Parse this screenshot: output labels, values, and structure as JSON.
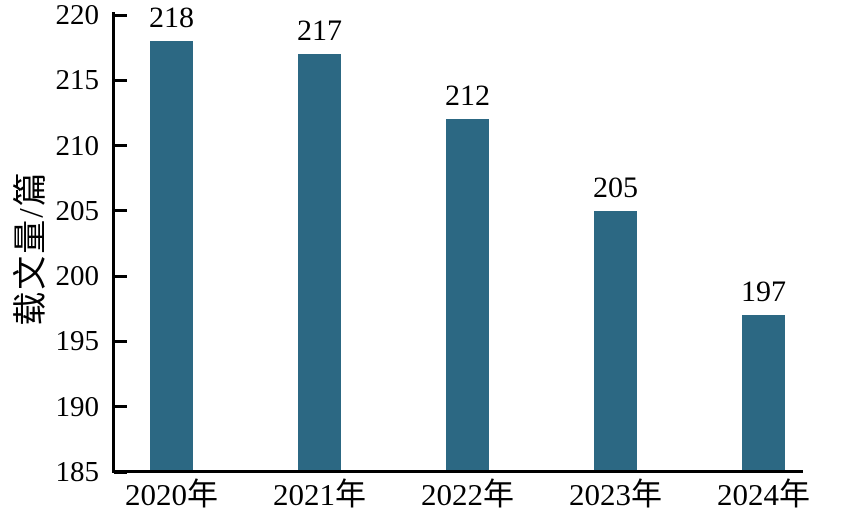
{
  "chart_data": {
    "type": "bar",
    "title": "",
    "categories": [
      "2020年",
      "2021年",
      "2022年",
      "2023年",
      "2024年"
    ],
    "values": [
      218,
      217,
      212,
      205,
      197
    ],
    "value_labels": [
      "218",
      "217",
      "212",
      "205",
      "197"
    ],
    "xlabel": "",
    "ylabel": "载文量/篇",
    "ylim": [
      185,
      220
    ],
    "yticks": [
      185,
      190,
      195,
      200,
      205,
      210,
      215,
      220
    ],
    "ytick_labels": [
      "185",
      "190",
      "195",
      "200",
      "205",
      "210",
      "215",
      "220"
    ],
    "grid": false,
    "legend": null,
    "colors": {
      "bar": "#2C6883",
      "text": "#000000",
      "axis": "#000000"
    }
  }
}
